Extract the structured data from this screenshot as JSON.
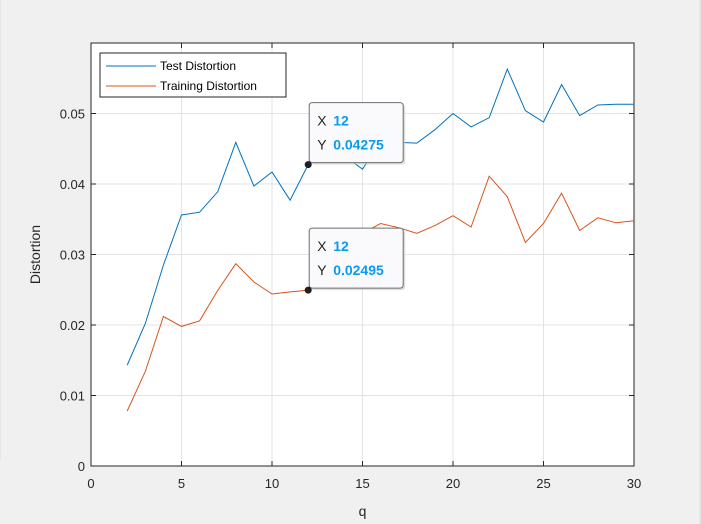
{
  "colors": {
    "background": "#f0f0f0",
    "axes_background": "#ffffff",
    "test_series": "#0072BD",
    "training_series": "#D95319",
    "datatip_value": "#0a9bf0"
  },
  "chart_data": {
    "type": "line",
    "xlabel": "q",
    "ylabel": "Distortion",
    "xlim": [
      0,
      30
    ],
    "ylim": [
      0,
      0.06
    ],
    "grid": true,
    "legend_position": "top-left",
    "xticks": [
      0,
      5,
      10,
      15,
      20,
      25,
      30
    ],
    "xtick_labels": [
      "0",
      "5",
      "10",
      "15",
      "20",
      "25",
      "30"
    ],
    "yticks": [
      0,
      0.01,
      0.02,
      0.03,
      0.04,
      0.05
    ],
    "ytick_labels": [
      "0",
      "0.01",
      "0.02",
      "0.03",
      "0.04",
      "0.05"
    ],
    "series": [
      {
        "name": "Test Distortion",
        "color": "#0072BD",
        "x": [
          2,
          3,
          4,
          5,
          6,
          7,
          8,
          9,
          10,
          11,
          12,
          13,
          14,
          15,
          16,
          17,
          18,
          19,
          20,
          21,
          22,
          23,
          24,
          25,
          26,
          27,
          28,
          29,
          30
        ],
        "y": [
          0.0143,
          0.0202,
          0.0285,
          0.0356,
          0.036,
          0.0389,
          0.0459,
          0.0397,
          0.0417,
          0.0377,
          0.04275,
          0.0455,
          0.044,
          0.0421,
          0.046,
          0.0459,
          0.0458,
          0.0477,
          0.05,
          0.0481,
          0.0494,
          0.0563,
          0.0504,
          0.0488,
          0.0541,
          0.0497,
          0.0512,
          0.0513,
          0.0513
        ]
      },
      {
        "name": "Training Distortion",
        "color": "#D95319",
        "x": [
          2,
          3,
          4,
          5,
          6,
          7,
          8,
          9,
          10,
          11,
          12,
          13,
          14,
          15,
          16,
          17,
          18,
          19,
          20,
          21,
          22,
          23,
          24,
          25,
          26,
          27,
          28,
          29,
          30
        ],
        "y": [
          0.0078,
          0.0134,
          0.0212,
          0.0198,
          0.0206,
          0.0249,
          0.0287,
          0.0261,
          0.0244,
          0.0247,
          0.02495,
          0.0282,
          0.0315,
          0.033,
          0.0344,
          0.0338,
          0.033,
          0.0341,
          0.0355,
          0.0339,
          0.0411,
          0.0382,
          0.0317,
          0.0344,
          0.0387,
          0.0334,
          0.0352,
          0.0345,
          0.0348
        ]
      }
    ],
    "datatips": [
      {
        "series": "Test Distortion",
        "x": 12,
        "y": 0.04275,
        "x_label": "X",
        "y_label": "Y",
        "x_text": "12",
        "y_text": "0.04275"
      },
      {
        "series": "Training Distortion",
        "x": 12,
        "y": 0.02495,
        "x_label": "X",
        "y_label": "Y",
        "x_text": "12",
        "y_text": "0.02495"
      }
    ]
  }
}
